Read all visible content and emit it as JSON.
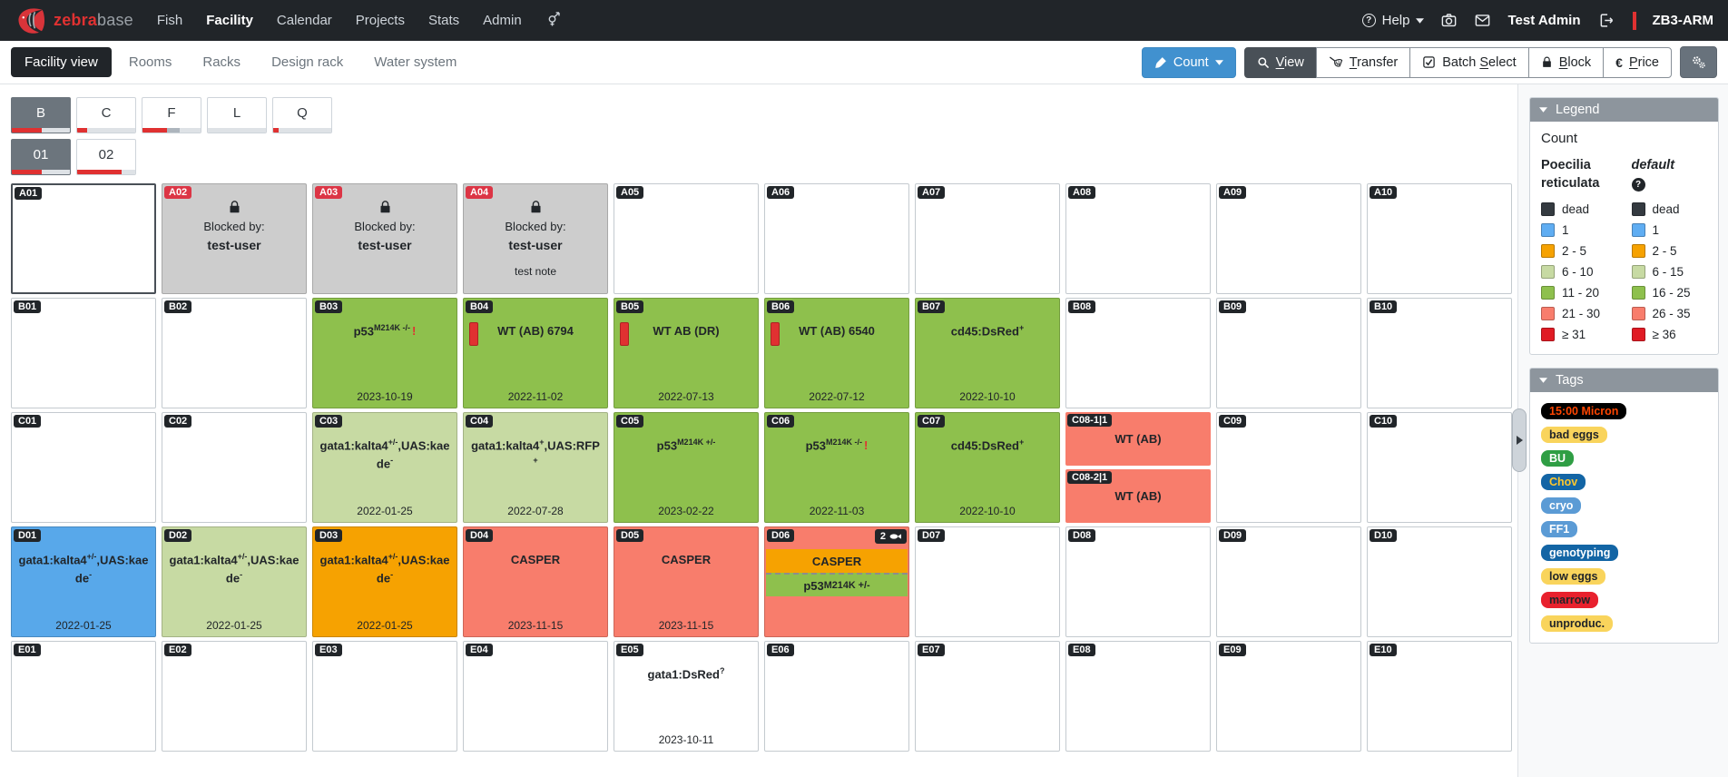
{
  "navbar": {
    "brand": {
      "zebra": "zebra",
      "base": "base",
      "logo_icon": "fish-logo-icon"
    },
    "items": [
      {
        "label": "Fish"
      },
      {
        "label": "Facility",
        "active": true
      },
      {
        "label": "Calendar"
      },
      {
        "label": "Projects"
      },
      {
        "label": "Stats"
      },
      {
        "label": "Admin"
      },
      {
        "icon": "gender-cross-icon"
      }
    ],
    "right": {
      "help_label": "Help",
      "icons": [
        "camera-icon",
        "mail-icon"
      ],
      "user": "Test Admin",
      "logout_icon": "logout-icon",
      "instance": "ZB3-ARM"
    }
  },
  "toolbar": {
    "tabs": [
      {
        "label": "Facility view",
        "active": true
      },
      {
        "label": "Rooms"
      },
      {
        "label": "Racks"
      },
      {
        "label": "Design rack"
      },
      {
        "label": "Water system"
      }
    ],
    "count_button": {
      "label": "Count",
      "icon": "brush-icon"
    },
    "group": [
      {
        "label": "View",
        "key": "V",
        "icon": "search-icon",
        "active": true
      },
      {
        "label": "Transfer",
        "key": "T",
        "icon": "net-icon"
      },
      {
        "label": "Batch Select",
        "key": "S",
        "icon": "checkbox-icon"
      },
      {
        "label": "Block",
        "key": "B",
        "icon": "lock-icon"
      },
      {
        "label": "Price",
        "key": "P",
        "icon": "euro-icon"
      }
    ],
    "settings_button": {
      "icon": "gears-icon"
    }
  },
  "racks": {
    "row1": [
      {
        "label": "B",
        "active": true,
        "bar": [
          [
            "red",
            52
          ],
          [
            "light",
            48
          ]
        ]
      },
      {
        "label": "C",
        "bar": [
          [
            "red",
            17
          ],
          [
            "light",
            83
          ]
        ]
      },
      {
        "label": "F",
        "bar": [
          [
            "red",
            42
          ],
          [
            "mid",
            22
          ],
          [
            "light",
            36
          ]
        ]
      },
      {
        "label": "L",
        "bar": [
          [
            "light",
            100
          ]
        ]
      },
      {
        "label": "Q",
        "bar": [
          [
            "red",
            9
          ],
          [
            "light",
            91
          ]
        ]
      }
    ],
    "row2": [
      {
        "label": "01",
        "active": true,
        "bar": [
          [
            "red",
            52
          ],
          [
            "light",
            48
          ]
        ]
      },
      {
        "label": "02",
        "bar": [
          [
            "red",
            77
          ],
          [
            "light",
            23
          ]
        ]
      }
    ]
  },
  "colors": {
    "red": "#e03131",
    "mid": "#adb5bd",
    "light": "#dee2e6",
    "green": "#8ec04d",
    "lightgreen": "#c7daa3",
    "salmon": "#f87d6c",
    "orange": "#f6a201",
    "blue": "#58a8ea",
    "white": "#ffffff",
    "blocked": "#cdcdcd"
  },
  "grid": {
    "blocked_by_label": "Blocked by:",
    "rows": [
      [
        {
          "id": "A01",
          "kind": "empty",
          "selected": true
        },
        {
          "id": "A02",
          "kind": "blocked",
          "blocked_by": "test-user"
        },
        {
          "id": "A03",
          "kind": "blocked",
          "blocked_by": "test-user"
        },
        {
          "id": "A04",
          "kind": "blocked",
          "blocked_by": "test-user",
          "note": "test note"
        },
        {
          "id": "A05",
          "kind": "empty"
        },
        {
          "id": "A06",
          "kind": "empty"
        },
        {
          "id": "A07",
          "kind": "empty"
        },
        {
          "id": "A08",
          "kind": "empty"
        },
        {
          "id": "A09",
          "kind": "empty"
        },
        {
          "id": "A10",
          "kind": "empty"
        }
      ],
      [
        {
          "id": "B01",
          "kind": "empty"
        },
        {
          "id": "B02",
          "kind": "empty"
        },
        {
          "id": "B03",
          "kind": "fish",
          "color": "green",
          "title": "p53^{M214K -/-}",
          "alert": "!",
          "date": "2023-10-19"
        },
        {
          "id": "B04",
          "kind": "fish",
          "color": "green",
          "stripe": true,
          "title": "WT (AB) 6794",
          "date": "2022-11-02"
        },
        {
          "id": "B05",
          "kind": "fish",
          "color": "green",
          "stripe": true,
          "title": "WT AB (DR)",
          "date": "2022-07-13"
        },
        {
          "id": "B06",
          "kind": "fish",
          "color": "green",
          "stripe": true,
          "title": "WT (AB) 6540",
          "date": "2022-07-12"
        },
        {
          "id": "B07",
          "kind": "fish",
          "color": "green",
          "title": "cd45:DsRed^{+}",
          "date": "2022-10-10"
        },
        {
          "id": "B08",
          "kind": "empty"
        },
        {
          "id": "B09",
          "kind": "empty"
        },
        {
          "id": "B10",
          "kind": "empty"
        }
      ],
      [
        {
          "id": "C01",
          "kind": "empty"
        },
        {
          "id": "C02",
          "kind": "empty"
        },
        {
          "id": "C03",
          "kind": "fish",
          "color": "lightgreen",
          "title": "gata1:kalta4^{+/-},UAS:kaede^{-}",
          "date": "2022-01-25"
        },
        {
          "id": "C04",
          "kind": "fish",
          "color": "lightgreen",
          "title": "gata1:kalta4^{+},UAS:RFP^{+}",
          "date": "2022-07-28"
        },
        {
          "id": "C05",
          "kind": "fish",
          "color": "green",
          "title": "p53^{M214K +/-}",
          "date": "2023-02-22"
        },
        {
          "id": "C06",
          "kind": "fish",
          "color": "green",
          "title": "p53^{M214K -/-}",
          "alert": "!",
          "date": "2022-11-03"
        },
        {
          "id": "C07",
          "kind": "fish",
          "color": "green",
          "title": "cd45:DsRed^{+}",
          "date": "2022-10-10"
        },
        {
          "id": "C08",
          "kind": "split",
          "subs": [
            {
              "label": "C08-1|1",
              "title": "WT (AB)",
              "color": "salmon"
            },
            {
              "label": "C08-2|1",
              "title": "WT (AB)",
              "color": "salmon"
            }
          ]
        },
        {
          "id": "C09",
          "kind": "empty"
        },
        {
          "id": "C10",
          "kind": "empty"
        }
      ],
      [
        {
          "id": "D01",
          "kind": "fish",
          "color": "blue",
          "title": "gata1:kalta4^{+/-},UAS:kaede^{-}",
          "date": "2022-01-25"
        },
        {
          "id": "D02",
          "kind": "fish",
          "color": "lightgreen",
          "title": "gata1:kalta4^{+/-},UAS:kaede^{-}",
          "date": "2022-01-25"
        },
        {
          "id": "D03",
          "kind": "fish",
          "color": "orange",
          "title": "gata1:kalta4^{+/-},UAS:kaede^{-}",
          "date": "2022-01-25"
        },
        {
          "id": "D04",
          "kind": "fish",
          "color": "salmon",
          "title": "CASPER",
          "date": "2023-11-15"
        },
        {
          "id": "D05",
          "kind": "fish",
          "color": "salmon",
          "title": "CASPER",
          "date": "2023-11-15"
        },
        {
          "id": "D06",
          "kind": "multi",
          "color": "salmon",
          "badge": {
            "count": "2",
            "icon": "fish-icon"
          },
          "bands": [
            {
              "color": "orange",
              "title": "CASPER"
            },
            {
              "color": "green",
              "title": "p53^{M214K +/-}"
            }
          ]
        },
        {
          "id": "D07",
          "kind": "empty"
        },
        {
          "id": "D08",
          "kind": "empty"
        },
        {
          "id": "D09",
          "kind": "empty"
        },
        {
          "id": "D10",
          "kind": "empty"
        }
      ],
      [
        {
          "id": "E01",
          "kind": "empty"
        },
        {
          "id": "E02",
          "kind": "empty"
        },
        {
          "id": "E03",
          "kind": "empty"
        },
        {
          "id": "E04",
          "kind": "empty"
        },
        {
          "id": "E05",
          "kind": "fish",
          "color": "white",
          "title": "gata1:DsRed^{?}",
          "date": "2023-10-11"
        },
        {
          "id": "E06",
          "kind": "empty"
        },
        {
          "id": "E07",
          "kind": "empty"
        },
        {
          "id": "E08",
          "kind": "empty"
        },
        {
          "id": "E09",
          "kind": "empty"
        },
        {
          "id": "E10",
          "kind": "empty"
        }
      ]
    ]
  },
  "legend": {
    "title": "Legend",
    "subtitle": "Count",
    "columns": [
      {
        "name": "Poecilia reticulata",
        "rows": [
          {
            "label": "dead",
            "color": "#343a40"
          },
          {
            "label": "1",
            "color": "#5fadf2"
          },
          {
            "label": "2 - 5",
            "color": "#f6a201"
          },
          {
            "label": "6 - 10",
            "color": "#c7daa3"
          },
          {
            "label": "11 - 20",
            "color": "#8ec04d"
          },
          {
            "label": "21 - 30",
            "color": "#f87d6c"
          },
          {
            "label": "≥ 31",
            "color": "#e01b24"
          }
        ]
      },
      {
        "name": "default",
        "italic": true,
        "help_icon": true,
        "rows": [
          {
            "label": "dead",
            "color": "#343a40"
          },
          {
            "label": "1",
            "color": "#5fadf2"
          },
          {
            "label": "2 - 5",
            "color": "#f6a201"
          },
          {
            "label": "6 - 15",
            "color": "#c7daa3"
          },
          {
            "label": "16 - 25",
            "color": "#8ec04d"
          },
          {
            "label": "26 - 35",
            "color": "#f87d6c"
          },
          {
            "label": "≥ 36",
            "color": "#e01b24"
          }
        ]
      }
    ]
  },
  "tags": {
    "title": "Tags",
    "items": [
      {
        "label": "15:00 Micron",
        "bg": "#000000",
        "fg": "#ff4500"
      },
      {
        "label": "bad eggs",
        "bg": "#f9d45c",
        "fg": "#212529"
      },
      {
        "label": "BU",
        "bg": "#2f9e44",
        "fg": "#ffffff"
      },
      {
        "label": "Chov",
        "bg": "#1365a5",
        "fg": "#ffc82e"
      },
      {
        "label": "cryo",
        "bg": "#5b9bd5",
        "fg": "#ffffff"
      },
      {
        "label": "FF1",
        "bg": "#5b9bd5",
        "fg": "#ffffff"
      },
      {
        "label": "genotyping",
        "bg": "#1365a5",
        "fg": "#ffffff"
      },
      {
        "label": "low eggs",
        "bg": "#f9d45c",
        "fg": "#212529"
      },
      {
        "label": "marrow",
        "bg": "#e8212e",
        "fg": "#212529"
      },
      {
        "label": "unproduc.",
        "bg": "#f9d45c",
        "fg": "#212529"
      }
    ]
  }
}
